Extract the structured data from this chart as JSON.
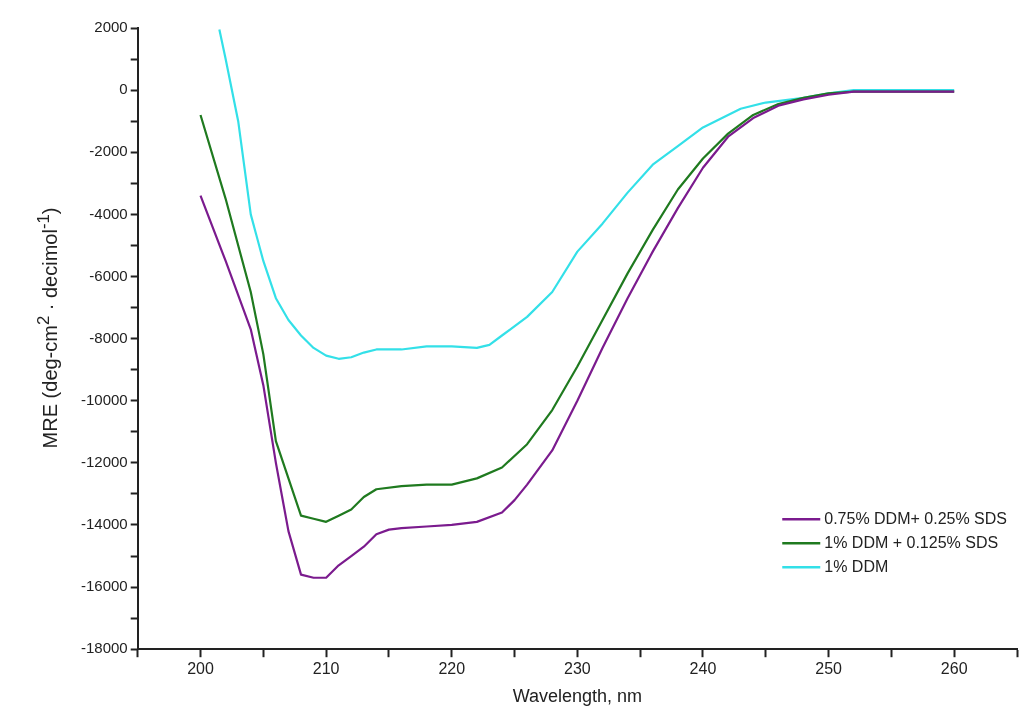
{
  "chart_data": {
    "type": "line",
    "xlabel": "Wavelength, nm",
    "ylabel": "MRE (deg-cm$^{2}$ · decimol$^{-1}$)",
    "xlim": [
      195,
      265
    ],
    "ylim": [
      -18000,
      2000
    ],
    "xticks": [
      {
        "value": 195,
        "label": null
      },
      200,
      {
        "value": 205,
        "label": null
      },
      210,
      {
        "value": 215,
        "label": null
      },
      220,
      {
        "value": 225,
        "label": null
      },
      230,
      {
        "value": 235,
        "label": null
      },
      240,
      {
        "value": 245,
        "label": null
      },
      250,
      {
        "value": 255,
        "label": null
      },
      260,
      {
        "value": 265,
        "label": null
      }
    ],
    "yticks": [
      -18000,
      {
        "value": -17000,
        "label": null
      },
      -16000,
      {
        "value": -15000,
        "label": null
      },
      -14000,
      {
        "value": -13000,
        "label": null
      },
      -12000,
      {
        "value": -11000,
        "label": null
      },
      -10000,
      {
        "value": -9000,
        "label": null
      },
      -8000,
      {
        "value": -7000,
        "label": null
      },
      -6000,
      {
        "value": -5000,
        "label": null
      },
      -4000,
      {
        "value": -3000,
        "label": null
      },
      -2000,
      {
        "value": -1000,
        "label": null
      },
      0,
      {
        "value": 1000,
        "label": null
      },
      2000
    ],
    "grid": false,
    "legend": "bottom right",
    "marker": "none",
    "line_style": "solid",
    "series": [
      {
        "name": "0.75% DDM+ 0.25% SDS",
        "color": "#7b1b8e",
        "x": [
          200,
          202,
          204,
          205,
          206,
          207,
          208,
          209,
          210,
          211,
          212,
          213,
          214,
          215,
          216,
          218,
          220,
          222,
          224,
          225,
          226,
          228,
          230,
          232,
          234,
          236,
          238,
          240,
          242,
          244,
          246,
          248,
          250,
          252,
          255,
          260
        ],
        "values": [
          -3400,
          -5500,
          -7700,
          -9500,
          -12000,
          -14200,
          -15600,
          -15700,
          -15700,
          -15300,
          -15000,
          -14700,
          -14300,
          -14150,
          -14100,
          -14050,
          -14000,
          -13900,
          -13600,
          -13200,
          -12700,
          -11600,
          -10000,
          -8300,
          -6700,
          -5200,
          -3800,
          -2500,
          -1500,
          -900,
          -500,
          -300,
          -150,
          -50,
          -50,
          -50
        ]
      },
      {
        "name": "1% DDM + 0.125% SDS",
        "color": "#1f7a1f",
        "x": [
          200,
          202,
          204,
          205,
          206,
          207,
          208,
          209,
          210,
          211,
          212,
          213,
          214,
          216,
          218,
          220,
          222,
          224,
          226,
          228,
          230,
          232,
          234,
          236,
          238,
          240,
          242,
          244,
          246,
          248,
          250,
          252,
          260
        ],
        "values": [
          -800,
          -3500,
          -6500,
          -8500,
          -11300,
          -12500,
          -13700,
          -13800,
          -13900,
          -13700,
          -13500,
          -13100,
          -12850,
          -12750,
          -12700,
          -12700,
          -12500,
          -12150,
          -11400,
          -10300,
          -8900,
          -7400,
          -5900,
          -4500,
          -3200,
          -2200,
          -1400,
          -800,
          -450,
          -250,
          -100,
          -50,
          -50
        ]
      },
      {
        "name": "1% DDM",
        "color": "#33e0e8",
        "x": [
          201.5,
          202,
          203,
          204,
          205,
          206,
          207,
          208,
          209,
          210,
          211,
          212,
          213,
          214,
          216,
          218,
          220,
          222,
          223,
          224,
          226,
          228,
          230,
          232,
          234,
          236,
          238,
          240,
          242,
          243,
          245,
          248,
          250,
          252,
          253,
          258,
          260
        ],
        "values": [
          1950,
          1000,
          -1000,
          -4000,
          -5500,
          -6700,
          -7400,
          -7900,
          -8300,
          -8550,
          -8650,
          -8600,
          -8450,
          -8350,
          -8350,
          -8250,
          -8250,
          -8300,
          -8200,
          -7900,
          -7300,
          -6500,
          -5200,
          -4300,
          -3300,
          -2400,
          -1800,
          -1200,
          -800,
          -600,
          -400,
          -250,
          -100,
          0,
          0,
          0,
          0
        ]
      }
    ]
  }
}
